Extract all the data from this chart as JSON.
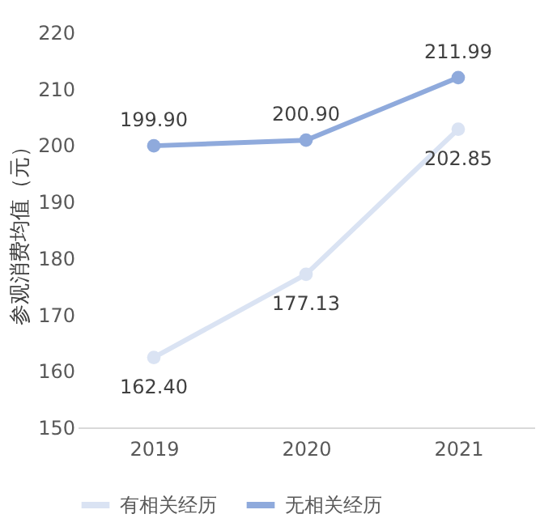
{
  "chart_data": {
    "type": "line",
    "ylabel": "参观消费均值（元）",
    "categories": [
      "2019",
      "2020",
      "2021"
    ],
    "series": [
      {
        "name": "有相关经历",
        "color": "#dae3f3",
        "values": [
          162.4,
          177.13,
          202.85
        ],
        "value_labels": [
          "162.40",
          "177.13",
          "202.85"
        ]
      },
      {
        "name": "无相关经历",
        "color": "#8faadc",
        "values": [
          199.9,
          200.9,
          211.99
        ],
        "value_labels": [
          "199.90",
          "200.90",
          "211.99"
        ]
      }
    ],
    "ylim": [
      150,
      220
    ],
    "yticks": [
      150,
      160,
      170,
      180,
      190,
      200,
      210,
      220
    ],
    "legend": "bottom",
    "marker": "circle"
  }
}
